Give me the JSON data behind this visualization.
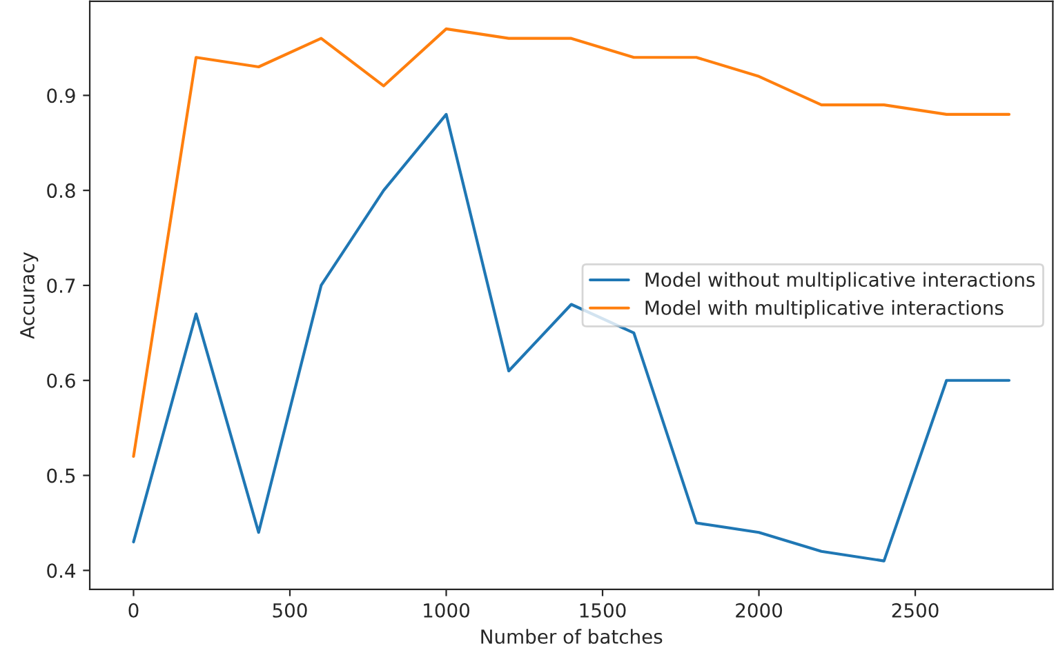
{
  "chart_data": {
    "type": "line",
    "xlabel": "Number of batches",
    "ylabel": "Accuracy",
    "x": [
      0,
      200,
      400,
      600,
      800,
      1000,
      1200,
      1400,
      1600,
      1800,
      2000,
      2200,
      2400,
      2600,
      2800
    ],
    "series": [
      {
        "name": "Model without multiplicative interactions",
        "color": "#1f77b4",
        "values": [
          0.43,
          0.67,
          0.44,
          0.7,
          0.8,
          0.88,
          0.61,
          0.68,
          0.65,
          0.45,
          0.44,
          0.42,
          0.41,
          0.6,
          0.6
        ]
      },
      {
        "name": "Model with multiplicative interactions",
        "color": "#ff7f0e",
        "values": [
          0.52,
          0.94,
          0.93,
          0.96,
          0.91,
          0.97,
          0.96,
          0.96,
          0.94,
          0.94,
          0.92,
          0.89,
          0.89,
          0.88,
          0.88
        ]
      }
    ],
    "xlim": [
      -140,
      2940
    ],
    "ylim": [
      0.38,
      0.999
    ],
    "xticks": [
      0,
      500,
      1000,
      1500,
      2000,
      2500
    ],
    "yticks": [
      {
        "value": 0.4,
        "label": "0.4"
      },
      {
        "value": 0.5,
        "label": "0.5"
      },
      {
        "value": 0.6,
        "label": "0.6"
      },
      {
        "value": 0.7,
        "label": "0.7"
      },
      {
        "value": 0.8,
        "label": "0.8"
      },
      {
        "value": 0.9,
        "label": "0.9"
      }
    ],
    "legend": "right",
    "grid": false,
    "marker": "none",
    "line_style": "solid"
  }
}
